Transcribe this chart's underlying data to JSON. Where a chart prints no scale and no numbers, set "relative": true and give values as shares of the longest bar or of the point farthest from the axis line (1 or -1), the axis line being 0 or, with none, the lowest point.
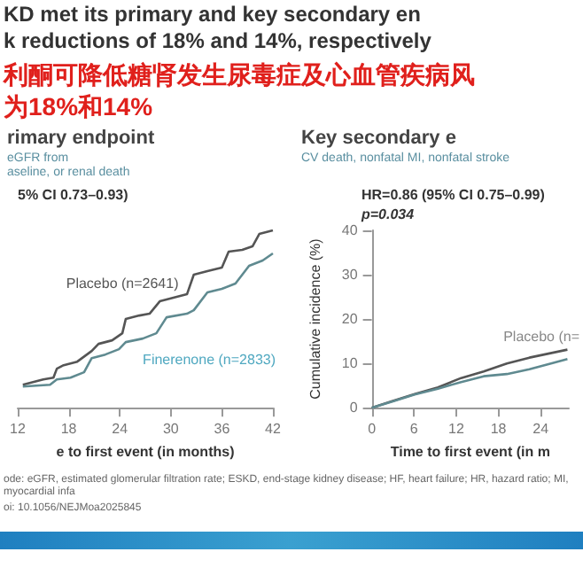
{
  "chart_data": [
    {
      "type": "line",
      "title": "rimary endpoint",
      "subtitle": "eGFR from\naseline, or renal death",
      "xlabel": "e to first event (in months)",
      "relative": true,
      "tick_labels": "x",
      "marker": "none",
      "xlim": [
        12,
        42
      ],
      "xticks": [
        12,
        18,
        24,
        30,
        36,
        42
      ],
      "annotations": [
        "KD met its primary and key secondary en",
        "k reductions of 18% and 14%, respectively",
        "利酮可降低糖肾发生尿毒症及心血管疾病风",
        "为18%和14%",
        "5% CI 0.73–0.93)",
        "ode: eGFR, estimated glomerular filtration rate; ESKD, end-stage kidney disease; HF, heart failure; HR, hazard ratio; MI, myocardial infa",
        "oi: 10.1056/NEJMoa2025845"
      ],
      "series": [
        {
          "name": "Placebo (n=2641)",
          "color": "#555555",
          "x": [
            12.6,
            15.0,
            16.2,
            16.6,
            17.4,
            19.0,
            20.7,
            21.5,
            23.1,
            24.3,
            24.7,
            26.3,
            27.5,
            28.7,
            30.3,
            31.9,
            32.7,
            34.3,
            36.0,
            36.8,
            38.4,
            39.6,
            40.4,
            42
          ],
          "values": [
            0.13,
            0.16,
            0.17,
            0.22,
            0.24,
            0.26,
            0.32,
            0.36,
            0.38,
            0.42,
            0.5,
            0.52,
            0.53,
            0.6,
            0.62,
            0.64,
            0.75,
            0.77,
            0.79,
            0.88,
            0.89,
            0.91,
            0.98,
            1.0
          ]
        },
        {
          "name": "Finerenone (n=2833)",
          "color": "#5f8a90",
          "x": [
            12.6,
            15.8,
            16.6,
            18.2,
            19.8,
            20.7,
            22.3,
            23.9,
            24.7,
            26.7,
            28.3,
            29.5,
            31.9,
            32.7,
            34.3,
            36.0,
            37.6,
            39.2,
            40.8,
            42
          ],
          "values": [
            0.12,
            0.13,
            0.16,
            0.17,
            0.2,
            0.28,
            0.3,
            0.33,
            0.37,
            0.39,
            0.42,
            0.51,
            0.53,
            0.55,
            0.65,
            0.67,
            0.7,
            0.8,
            0.83,
            0.87
          ]
        }
      ]
    },
    {
      "type": "line",
      "title": "Key secondary e",
      "subtitle": "CV death, nonfatal MI, nonfatal stroke",
      "xlabel": "Time to first event (in m",
      "ylabel": "Cumulative incidence (%)",
      "marker": "none",
      "xlim": [
        0,
        28
      ],
      "xticks": [
        0,
        6,
        12,
        18,
        24
      ],
      "ylim": [
        0,
        40
      ],
      "yticks": [
        0,
        10,
        20,
        30,
        40
      ],
      "annotations": [
        "HR=0.86 (95% CI 0.75–0.99)",
        "p=0.034",
        "Placebo (n="
      ],
      "series": [
        {
          "color": "#555555",
          "x": [
            0,
            2.9,
            6.1,
            9.4,
            12.7,
            15.9,
            19.2,
            22.4,
            25.7,
            27.8
          ],
          "values": [
            0,
            1.5,
            3.1,
            4.6,
            6.7,
            8.2,
            10,
            11.3,
            12.4,
            13.1
          ]
        },
        {
          "color": "#5f8a90",
          "x": [
            0,
            2.9,
            6.1,
            9.4,
            12.7,
            15.9,
            19.2,
            22.4,
            25.7,
            27.8
          ],
          "values": [
            0,
            1.4,
            3.0,
            4.3,
            5.8,
            7.1,
            7.6,
            8.7,
            10.1,
            11.0
          ]
        }
      ]
    }
  ]
}
